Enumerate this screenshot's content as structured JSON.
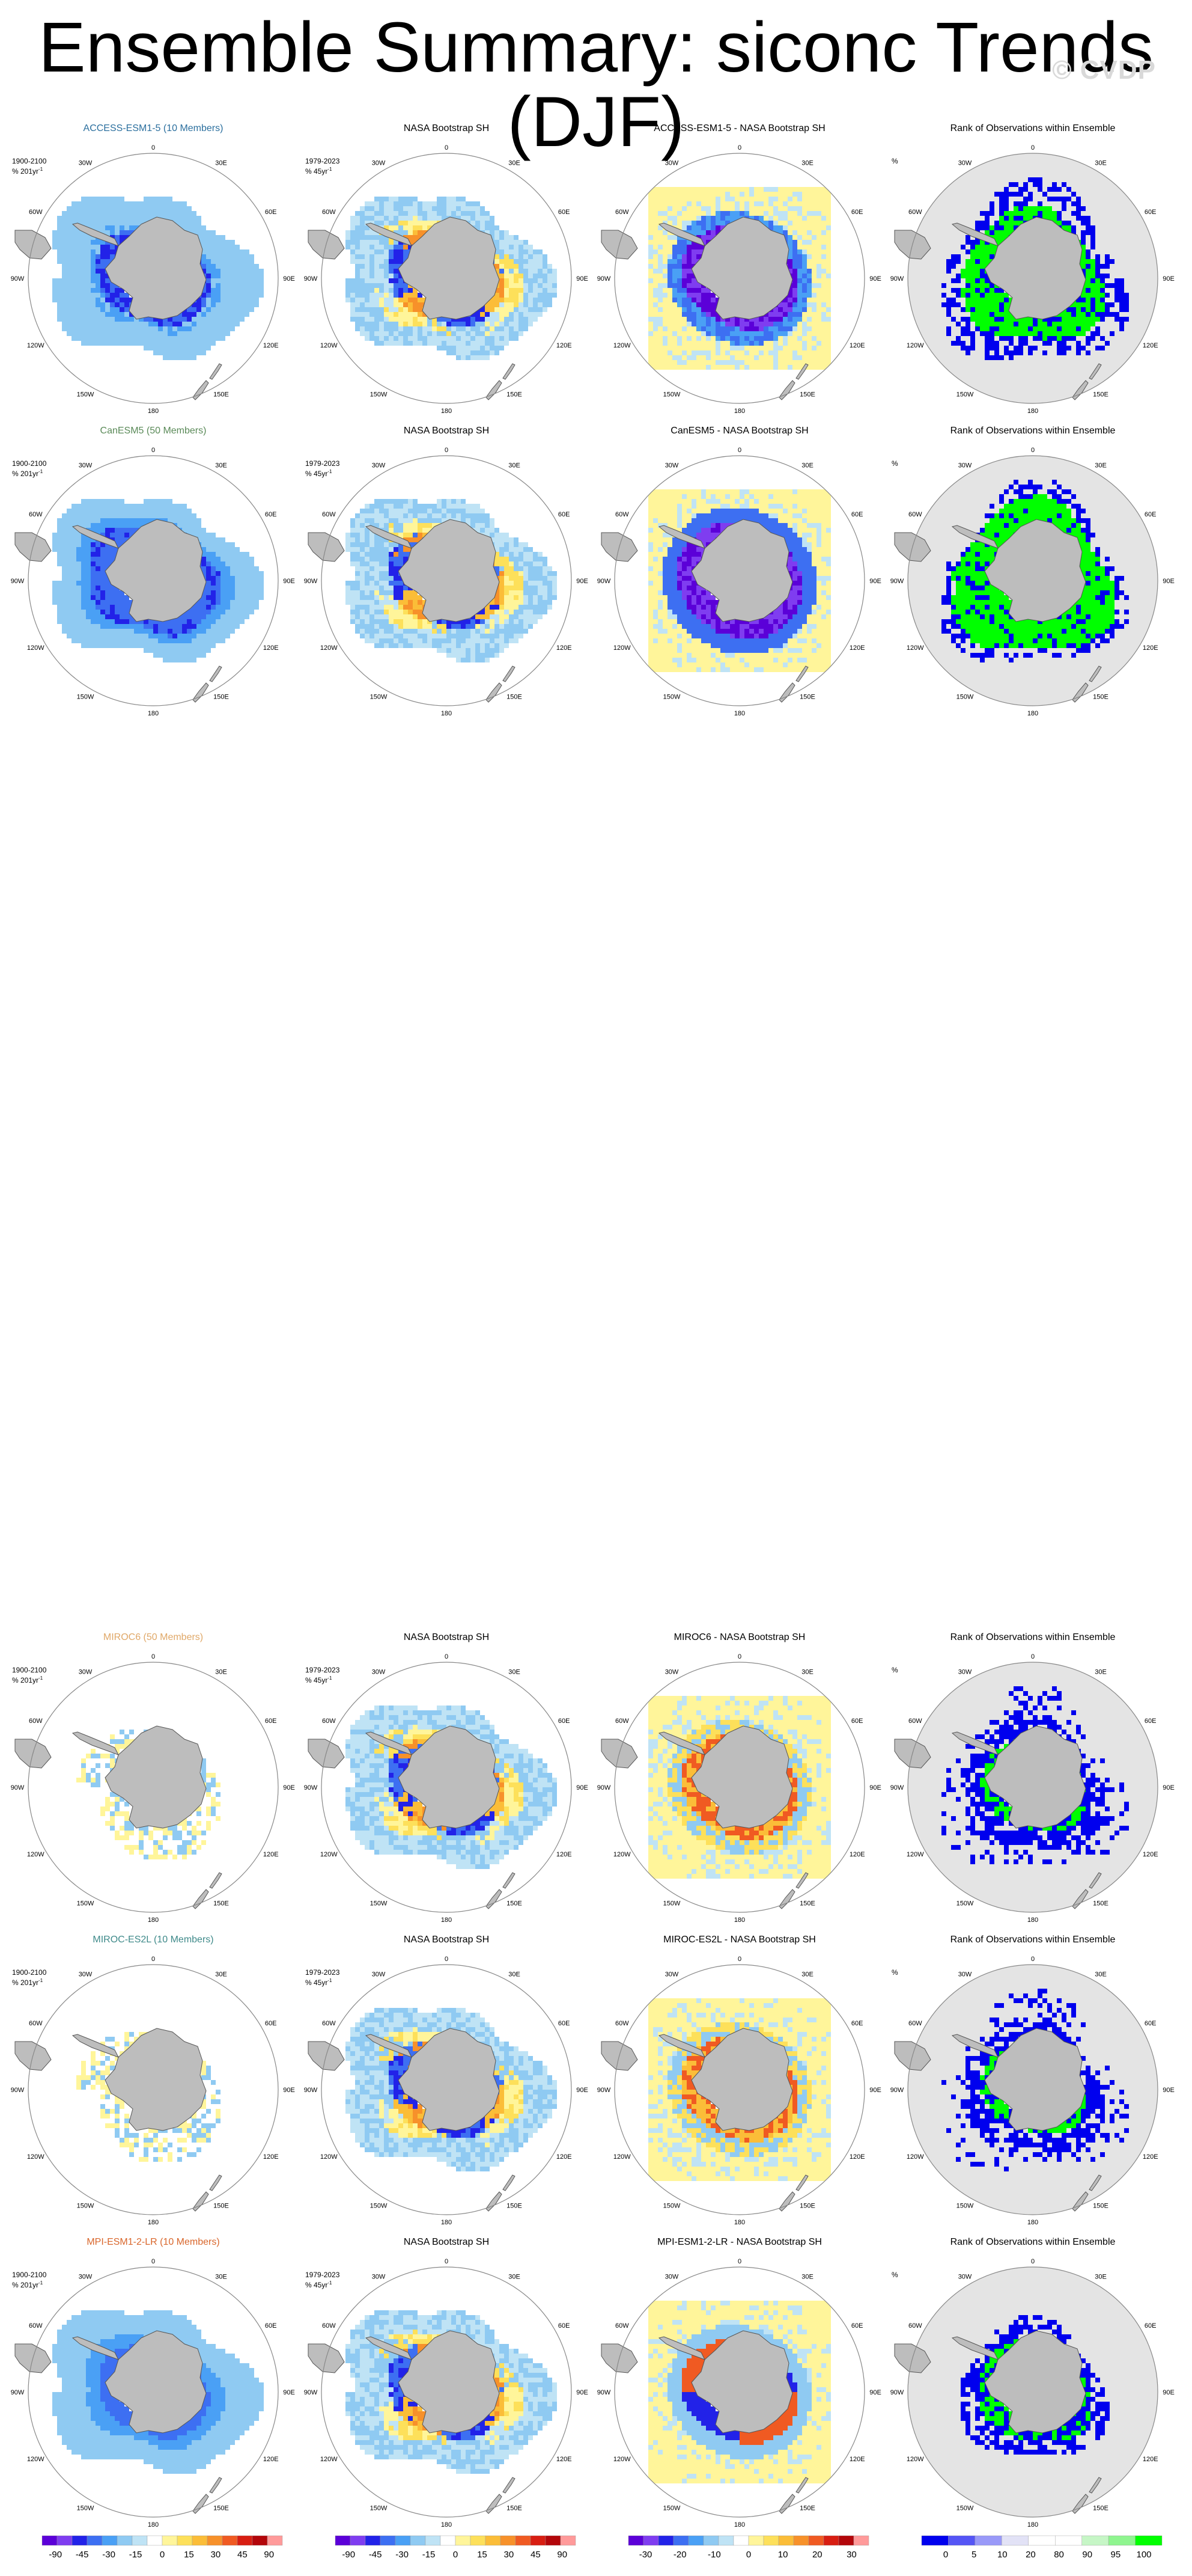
{
  "page": {
    "title": "Ensemble Summary: siconc Trends (DJF)",
    "watermark": "© CVDP"
  },
  "colors": {
    "land": "#bdbdbd",
    "ocean_rank": "#e4e4e4",
    "trend_scale": [
      "#5b00d8",
      "#7f3df0",
      "#2222e8",
      "#3d6ff2",
      "#4aa0f5",
      "#8fcaf2",
      "#bfe3f5",
      "#ffffff",
      "#fff59a",
      "#fde05a",
      "#fbbd38",
      "#f7912a",
      "#f05a22",
      "#d81e12",
      "#b3060a",
      "#ff9a9a"
    ],
    "rank_scale": [
      "#0000ee",
      "#5555f5",
      "#9999f8",
      "#e2e2f6",
      "#ffffff",
      "#ffffff",
      "#c6f6c6",
      "#8ff58f",
      "#00ff00"
    ]
  },
  "axes_labels": {
    "top": "0",
    "bottom": "180",
    "left_lon": [
      "30W",
      "60W",
      "90W",
      "120W",
      "150W"
    ],
    "right_lon": [
      "30E",
      "60E",
      "90E",
      "120E",
      "150E"
    ]
  },
  "chart_data": [
    {
      "type": "heatmap",
      "row": 0,
      "col": 0,
      "title": "ACCESS-ESM1-5 (10 Members)",
      "title_color": "#2b6f9e",
      "period": "1900-2100",
      "units": "% 201yr",
      "units_exp": "-1",
      "pattern": "model_access"
    },
    {
      "type": "heatmap",
      "row": 0,
      "col": 1,
      "title": "NASA Bootstrap SH",
      "title_color": "#000000",
      "period": "1979-2023",
      "units": "% 45yr",
      "units_exp": "-1",
      "pattern": "obs"
    },
    {
      "type": "heatmap",
      "row": 0,
      "col": 2,
      "title": "ACCESS-ESM1-5 - NASA Bootstrap SH",
      "title_color": "#000000",
      "pattern": "diff_neg"
    },
    {
      "type": "heatmap",
      "row": 0,
      "col": 3,
      "title": "Rank of Observations within Ensemble",
      "title_color": "#000000",
      "units": "%",
      "pattern": "rank_green"
    },
    {
      "type": "heatmap",
      "row": 1,
      "col": 0,
      "title": "CanESM5 (50 Members)",
      "title_color": "#5a8a58",
      "period": "1900-2100",
      "units": "% 201yr",
      "units_exp": "-1",
      "pattern": "model_can"
    },
    {
      "type": "heatmap",
      "row": 1,
      "col": 1,
      "title": "NASA Bootstrap SH",
      "title_color": "#000000",
      "period": "1979-2023",
      "units": "% 45yr",
      "units_exp": "-1",
      "pattern": "obs"
    },
    {
      "type": "heatmap",
      "row": 1,
      "col": 2,
      "title": "CanESM5 - NASA Bootstrap SH",
      "title_color": "#000000",
      "pattern": "diff_strong"
    },
    {
      "type": "heatmap",
      "row": 1,
      "col": 3,
      "title": "Rank of Observations within Ensemble",
      "title_color": "#000000",
      "units": "%",
      "pattern": "rank_full_green"
    },
    {
      "type": "heatmap",
      "row": 2,
      "col": 0,
      "title": "MIROC6 (50 Members)",
      "title_color": "#e0a868",
      "period": "1900-2100",
      "units": "% 201yr",
      "units_exp": "-1",
      "pattern": "model_miroc"
    },
    {
      "type": "heatmap",
      "row": 2,
      "col": 1,
      "title": "NASA Bootstrap SH",
      "title_color": "#000000",
      "period": "1979-2023",
      "units": "% 45yr",
      "units_exp": "-1",
      "pattern": "obs"
    },
    {
      "type": "heatmap",
      "row": 2,
      "col": 2,
      "title": "MIROC6 - NASA Bootstrap SH",
      "title_color": "#000000",
      "pattern": "diff_pos"
    },
    {
      "type": "heatmap",
      "row": 2,
      "col": 3,
      "title": "Rank of Observations within Ensemble",
      "title_color": "#000000",
      "units": "%",
      "pattern": "rank_blue"
    },
    {
      "type": "heatmap",
      "row": 3,
      "col": 0,
      "title": "MIROC-ES2L (10 Members)",
      "title_color": "#3f8a8a",
      "period": "1900-2100",
      "units": "% 201yr",
      "units_exp": "-1",
      "pattern": "model_miroc"
    },
    {
      "type": "heatmap",
      "row": 3,
      "col": 1,
      "title": "NASA Bootstrap SH",
      "title_color": "#000000",
      "period": "1979-2023",
      "units": "% 45yr",
      "units_exp": "-1",
      "pattern": "obs"
    },
    {
      "type": "heatmap",
      "row": 3,
      "col": 2,
      "title": "MIROC-ES2L - NASA Bootstrap SH",
      "title_color": "#000000",
      "pattern": "diff_pos"
    },
    {
      "type": "heatmap",
      "row": 3,
      "col": 3,
      "title": "Rank of Observations within Ensemble",
      "title_color": "#000000",
      "units": "%",
      "pattern": "rank_blue"
    },
    {
      "type": "heatmap",
      "row": 4,
      "col": 0,
      "title": "MPI-ESM1-2-LR (10 Members)",
      "title_color": "#d9662b",
      "period": "1900-2100",
      "units": "% 201yr",
      "units_exp": "-1",
      "pattern": "model_mpi"
    },
    {
      "type": "heatmap",
      "row": 4,
      "col": 1,
      "title": "NASA Bootstrap SH",
      "title_color": "#000000",
      "period": "1979-2023",
      "units": "% 45yr",
      "units_exp": "-1",
      "pattern": "obs"
    },
    {
      "type": "heatmap",
      "row": 4,
      "col": 2,
      "title": "MPI-ESM1-2-LR - NASA Bootstrap SH",
      "title_color": "#000000",
      "pattern": "diff_mixed"
    },
    {
      "type": "heatmap",
      "row": 4,
      "col": 3,
      "title": "Rank of Observations within Ensemble",
      "title_color": "#000000",
      "units": "%",
      "pattern": "rank_mixed"
    }
  ],
  "colorbars": [
    {
      "col": 0,
      "ticks": [
        "-90",
        "-45",
        "-30",
        "-15",
        "0",
        "15",
        "30",
        "45",
        "90"
      ],
      "scale": "trend"
    },
    {
      "col": 1,
      "ticks": [
        "-90",
        "-45",
        "-30",
        "-15",
        "0",
        "15",
        "30",
        "45",
        "90"
      ],
      "scale": "trend"
    },
    {
      "col": 2,
      "ticks": [
        "-30",
        "-20",
        "-10",
        "0",
        "10",
        "20",
        "30"
      ],
      "scale": "trend"
    },
    {
      "col": 3,
      "ticks": [
        "0",
        "5",
        "10",
        "20",
        "80",
        "90",
        "95",
        "100"
      ],
      "scale": "rank"
    }
  ]
}
